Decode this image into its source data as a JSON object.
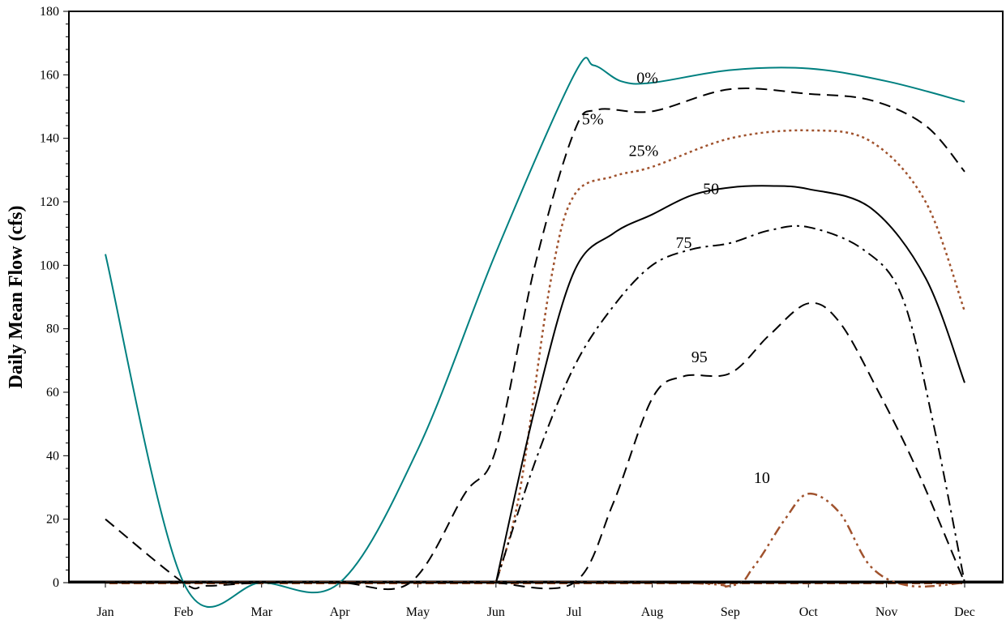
{
  "chart_data": {
    "type": "line",
    "title": "",
    "xlabel": "",
    "ylabel": "Daily Mean Flow (cfs)",
    "ylim": [
      0,
      180
    ],
    "yticks": [
      0,
      20,
      40,
      60,
      80,
      100,
      120,
      140,
      160,
      180
    ],
    "categories": [
      "Jan",
      "Feb",
      "Mar",
      "Apr",
      "May",
      "Jun",
      "Jul",
      "Aug",
      "Sep",
      "Oct",
      "Nov",
      "Dec"
    ],
    "x": [
      1,
      2,
      3,
      4,
      5,
      6,
      7,
      8,
      9,
      10,
      11,
      12
    ],
    "grid": false,
    "legend": "none",
    "series": [
      {
        "label": "0%",
        "color": "#008080",
        "dash": "solid",
        "points": [
          [
            1,
            103.5
          ],
          [
            2,
            0
          ],
          [
            3,
            0
          ],
          [
            4,
            0
          ],
          [
            5,
            42
          ],
          [
            6,
            104
          ],
          [
            7,
            160
          ],
          [
            7.25,
            163
          ],
          [
            7.6,
            158
          ],
          [
            8,
            157.5
          ],
          [
            9,
            161.5
          ],
          [
            10,
            162
          ],
          [
            11,
            158
          ],
          [
            12,
            151.5
          ]
        ],
        "label_pos": [
          7.8,
          161
        ]
      },
      {
        "label": "5%",
        "color": "#000000",
        "dash": "dashed",
        "points": [
          [
            1,
            20
          ],
          [
            2,
            0
          ],
          [
            2.3,
            -1
          ],
          [
            3,
            0
          ],
          [
            4,
            0
          ],
          [
            4.9,
            0
          ],
          [
            5.6,
            28
          ],
          [
            6,
            42
          ],
          [
            6.5,
            100
          ],
          [
            7,
            142
          ],
          [
            7.3,
            149
          ],
          [
            8,
            148.5
          ],
          [
            9,
            155.5
          ],
          [
            10,
            154
          ],
          [
            10.8,
            152
          ],
          [
            11.5,
            144
          ],
          [
            12,
            129.5
          ]
        ],
        "label_pos": [
          7.1,
          148
        ]
      },
      {
        "label": "25%",
        "color": "#A0522D",
        "dash": "dotted",
        "points": [
          [
            6,
            0
          ],
          [
            6.3,
            28
          ],
          [
            6.7,
            95
          ],
          [
            7,
            122
          ],
          [
            7.5,
            128
          ],
          [
            8,
            131
          ],
          [
            9,
            140
          ],
          [
            10,
            142.5
          ],
          [
            10.8,
            139
          ],
          [
            11.5,
            120
          ],
          [
            12,
            85.5
          ]
        ],
        "label_pos": [
          7.7,
          138
        ]
      },
      {
        "label": "50",
        "color": "#000000",
        "dash": "solid",
        "points": [
          [
            6,
            0
          ],
          [
            6.5,
            55
          ],
          [
            7,
            98
          ],
          [
            7.5,
            110
          ],
          [
            8,
            116
          ],
          [
            8.5,
            122
          ],
          [
            9,
            124.5
          ],
          [
            9.5,
            125
          ],
          [
            10,
            124
          ],
          [
            10.8,
            118
          ],
          [
            11.5,
            96
          ],
          [
            12,
            63
          ]
        ],
        "label_pos": [
          8.65,
          126
        ]
      },
      {
        "label": "75",
        "color": "#000000",
        "dash": "dashdot",
        "points": [
          [
            6,
            0
          ],
          [
            6.5,
            38
          ],
          [
            7,
            68
          ],
          [
            7.5,
            87
          ],
          [
            8,
            100
          ],
          [
            8.5,
            105
          ],
          [
            9,
            107
          ],
          [
            9.5,
            111
          ],
          [
            10,
            112
          ],
          [
            10.7,
            105
          ],
          [
            11.2,
            90
          ],
          [
            11.6,
            50
          ],
          [
            12,
            0
          ]
        ],
        "label_pos": [
          8.3,
          109
        ]
      },
      {
        "label": "95",
        "color": "#000000",
        "dash": "dashed",
        "points": [
          [
            6,
            0
          ],
          [
            7,
            0
          ],
          [
            7.5,
            25
          ],
          [
            8,
            58
          ],
          [
            8.4,
            65
          ],
          [
            9,
            66
          ],
          [
            9.5,
            78
          ],
          [
            10,
            88
          ],
          [
            10.4,
            82
          ],
          [
            10.9,
            60
          ],
          [
            11.4,
            35
          ],
          [
            12,
            0
          ]
        ],
        "label_pos": [
          8.5,
          73
        ]
      },
      {
        "label": "10",
        "color": "#A0522D",
        "dash": "dashdotdot",
        "points": [
          [
            1,
            0
          ],
          [
            8,
            0
          ],
          [
            9,
            -1
          ],
          [
            9.3,
            5
          ],
          [
            9.7,
            20
          ],
          [
            10,
            28
          ],
          [
            10.4,
            22
          ],
          [
            10.8,
            5
          ],
          [
            11.3,
            -1
          ],
          [
            12,
            0
          ]
        ],
        "label_pos": [
          9.3,
          35
        ]
      }
    ]
  }
}
